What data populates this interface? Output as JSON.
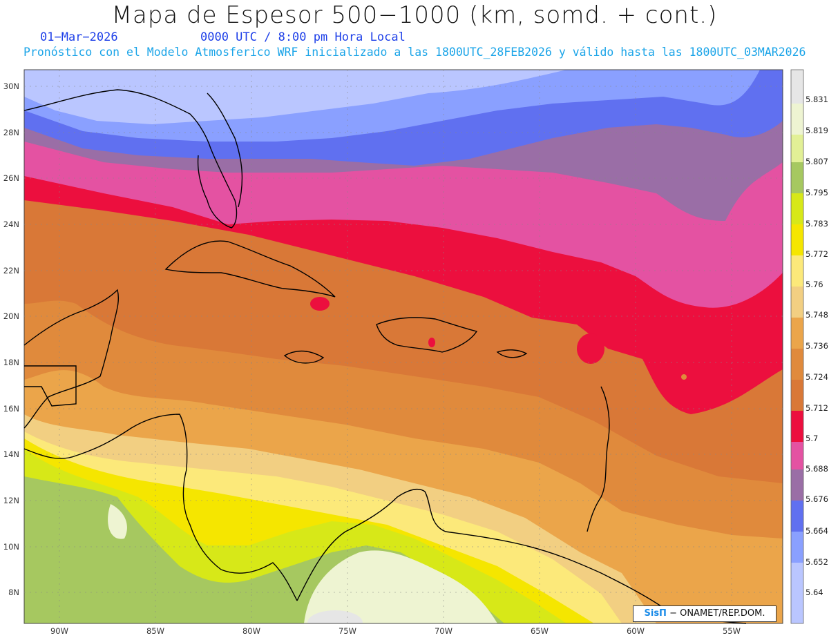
{
  "header": {
    "title": "Mapa de Espesor 500−1000 (km, somd. + cont.)",
    "date": "01−Mar−2026",
    "time": "0000 UTC / 8:00 pm Hora Local",
    "description": "Pronóstico con el Modelo Atmosferico WRF inicializado a las 1800UTC_28FEB2026 y válido hasta las  1800UTC_03MAR2026"
  },
  "map": {
    "lon_range": [
      -92,
      -52.5
    ],
    "lat_range": [
      6.8,
      30.7
    ],
    "lat_labels": [
      "30N",
      "28N",
      "26N",
      "24N",
      "22N",
      "20N",
      "18N",
      "16N",
      "14N",
      "12N",
      "10N",
      "8N"
    ],
    "lon_labels": [
      "90W",
      "85W",
      "80W",
      "75W",
      "70W",
      "65W",
      "60W",
      "55W"
    ]
  },
  "colorbar": {
    "levels": [
      "5.831",
      "5.819",
      "5.807",
      "5.795",
      "5.783",
      "5.772",
      "5.76",
      "5.748",
      "5.736",
      "5.724",
      "5.712",
      "5.7",
      "5.688",
      "5.676",
      "5.664",
      "5.652",
      "5.64"
    ],
    "colors": [
      "#e6e6e6",
      "#eef4d2",
      "#e2f096",
      "#a6c860",
      "#d7e818",
      "#f5e600",
      "#fce97a",
      "#f2cf82",
      "#eba54a",
      "#e08a3c",
      "#d97837",
      "#ec0f3e",
      "#e452a2",
      "#9a6ea6",
      "#6070f0",
      "#8aa0ff",
      "#bac6ff"
    ]
  },
  "credit": {
    "logo": "SisΠ",
    "text": "− ONAMET/REP.DOM."
  }
}
